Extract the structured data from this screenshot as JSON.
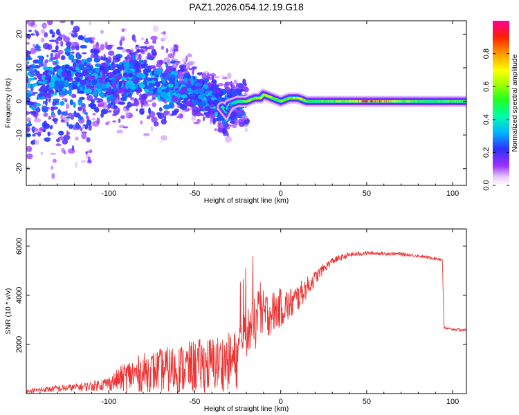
{
  "chart_data": [
    {
      "type": "heatmap",
      "title": "PAZ1.2026.054.12.19.G18",
      "xlabel": "Height of straight line (km)",
      "ylabel": "Frequency (Hz)",
      "xlim": [
        -148,
        108
      ],
      "ylim": [
        -25,
        24
      ],
      "xticks": [
        -100,
        -50,
        0,
        50,
        100
      ],
      "yticks": [
        -20,
        -10,
        0,
        10,
        20
      ],
      "colorbar": {
        "label": "Normalized spectral amplitude",
        "range": [
          0,
          1
        ],
        "ticks": [
          0.0,
          0.2,
          0.4,
          0.6,
          0.8
        ],
        "tick_labels": [
          "0.0",
          "0.2",
          "0.4",
          "0.6",
          "0.8"
        ],
        "colors": [
          "#ffffff",
          "#d9b3ff",
          "#8000ff",
          "#2020ff",
          "#00ccff",
          "#00ff80",
          "#40ff00",
          "#ffff00",
          "#ff8000",
          "#ff0000",
          "#ff0080"
        ]
      },
      "frequency_ridge": {
        "height_km": [
          -145,
          -130,
          -120,
          -110,
          -100,
          -90,
          -80,
          -70,
          -60,
          -50,
          -40,
          -35,
          -32,
          -30,
          -25,
          -20,
          -15,
          -12,
          -10,
          -5,
          0,
          5,
          10,
          15,
          20,
          30,
          40,
          50,
          60,
          70,
          80,
          90,
          100,
          108
        ],
        "frequency_hz": [
          4,
          6,
          7,
          6,
          6,
          7,
          7,
          5,
          4,
          3,
          1,
          -1,
          -3,
          -1,
          0,
          0,
          1,
          1,
          2,
          1,
          0,
          1,
          1,
          0,
          0,
          0,
          0,
          0,
          0,
          0,
          0,
          0,
          0,
          0
        ],
        "amplitude": [
          0.15,
          0.2,
          0.2,
          0.25,
          0.3,
          0.35,
          0.35,
          0.3,
          0.3,
          0.3,
          0.3,
          0.25,
          0.2,
          0.3,
          0.45,
          0.55,
          0.6,
          0.65,
          0.7,
          0.6,
          0.55,
          0.6,
          0.65,
          0.55,
          0.5,
          0.55,
          0.65,
          0.85,
          0.75,
          0.6,
          0.5,
          0.5,
          0.55,
          0.5
        ]
      }
    },
    {
      "type": "line",
      "title": "",
      "xlabel": "Height of straight line (km)",
      "ylabel": "SNR (10 * v/v)",
      "xlim": [
        -148,
        108
      ],
      "ylim": [
        0,
        6700
      ],
      "xticks": [
        -100,
        -50,
        0,
        50,
        100
      ],
      "yticks": [
        2000,
        4000,
        6000
      ],
      "series": [
        {
          "name": "SNR",
          "color": "#ee3333",
          "x": [
            -148,
            -140,
            -130,
            -120,
            -110,
            -100,
            -95,
            -90,
            -80,
            -70,
            -60,
            -50,
            -40,
            -30,
            -25,
            -24,
            -20,
            -15,
            -12,
            -10,
            -5,
            0,
            5,
            10,
            15,
            20,
            25,
            30,
            40,
            50,
            60,
            70,
            80,
            90,
            94,
            95,
            100,
            108
          ],
          "y": [
            100,
            150,
            200,
            250,
            300,
            420,
            550,
            700,
            850,
            950,
            1000,
            1100,
            1200,
            1300,
            1400,
            2100,
            2500,
            2800,
            3300,
            3200,
            3300,
            3500,
            3600,
            3900,
            4300,
            4700,
            5100,
            5400,
            5650,
            5720,
            5700,
            5680,
            5600,
            5500,
            5450,
            2650,
            2620,
            2580
          ],
          "noise_amplitude": [
            80,
            100,
            150,
            150,
            200,
            300,
            450,
            650,
            800,
            900,
            1000,
            1100,
            1150,
            1200,
            1250,
            900,
            1000,
            1100,
            1300,
            1000,
            900,
            800,
            700,
            600,
            450,
            300,
            200,
            150,
            100,
            80,
            70,
            70,
            60,
            60,
            60,
            60,
            60,
            60
          ]
        }
      ]
    }
  ]
}
